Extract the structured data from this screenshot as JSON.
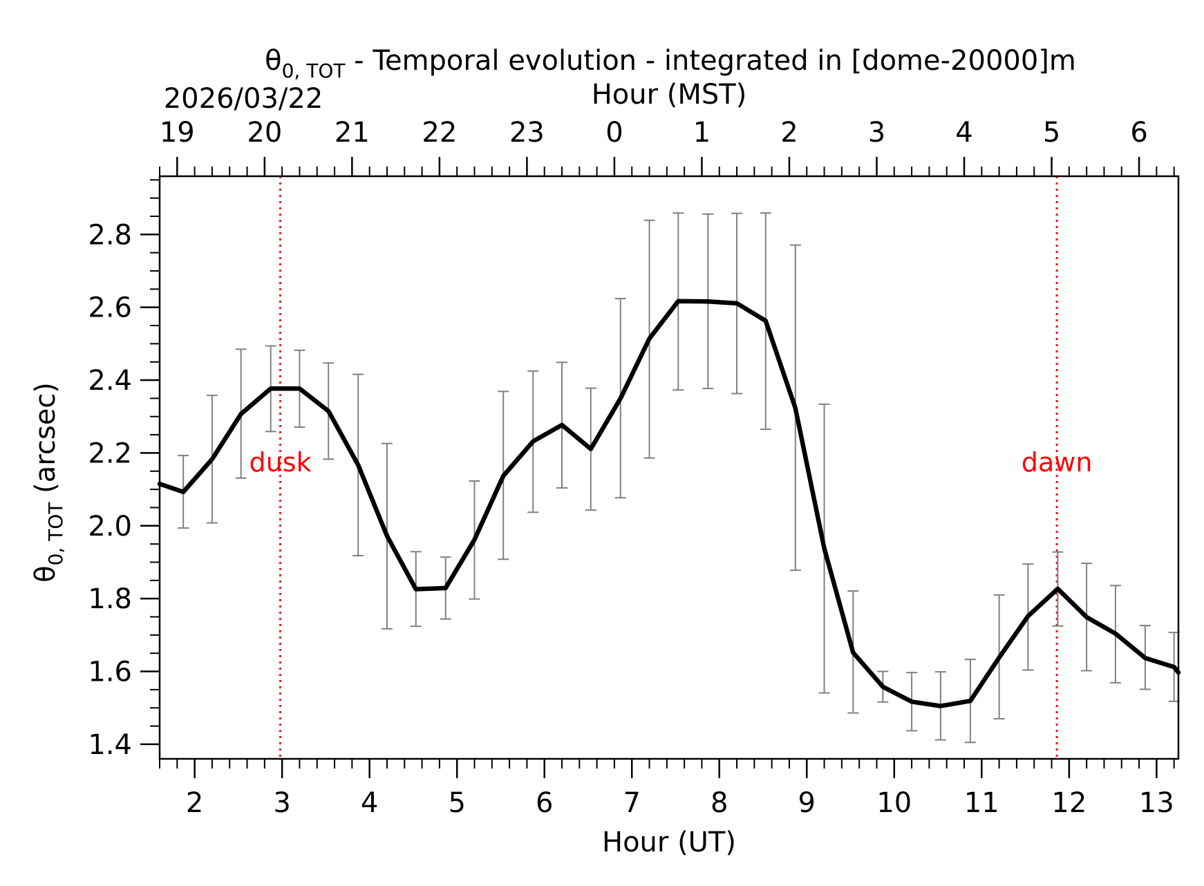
{
  "chart_data": {
    "type": "line",
    "title_sub": "0, TOT",
    "title_rest": " - Temporal evolution - integrated in [dome-20000]m",
    "ylabel_main": "θ",
    "ylabel_sub": "0, TOT",
    "ylabel_rest": " (arcsec)",
    "xlabel": "Hour (UT)",
    "x2label": "Hour (MST)",
    "date_label": "2026/03/22",
    "xlim": [
      1.6,
      13.25
    ],
    "ylim": [
      1.36,
      2.96
    ],
    "x_ticks": [
      2,
      3,
      4,
      5,
      6,
      7,
      8,
      9,
      10,
      11,
      12,
      13
    ],
    "x_tick_labels": [
      "2",
      "3",
      "4",
      "5",
      "6",
      "7",
      "8",
      "9",
      "10",
      "11",
      "12",
      "13"
    ],
    "x2_ticks": [
      1.8,
      2.8,
      3.8,
      4.8,
      5.8,
      6.8,
      7.8,
      8.8,
      9.8,
      10.8,
      11.8,
      12.8
    ],
    "x2_tick_labels": [
      "19",
      "20",
      "21",
      "22",
      "23",
      "0",
      "1",
      "2",
      "3",
      "4",
      "5",
      "6"
    ],
    "y_ticks": [
      1.4,
      1.6,
      1.8,
      2.0,
      2.2,
      2.4,
      2.6,
      2.8
    ],
    "y_tick_labels": [
      "1.4",
      "1.6",
      "1.8",
      "2.0",
      "2.2",
      "2.4",
      "2.6",
      "2.8"
    ],
    "series": [
      {
        "name": "theta0_TOT",
        "color": "#000000",
        "x": [
          1.6,
          1.87,
          2.2,
          2.53,
          2.87,
          3.2,
          3.53,
          3.87,
          4.2,
          4.53,
          4.87,
          5.2,
          5.53,
          5.87,
          6.2,
          6.53,
          6.87,
          7.2,
          7.53,
          7.87,
          8.2,
          8.53,
          8.87,
          9.2,
          9.53,
          9.87,
          10.2,
          10.53,
          10.87,
          11.2,
          11.53,
          11.87,
          12.2,
          12.53,
          12.87,
          13.2,
          13.25
        ],
        "y": [
          2.115,
          2.093,
          2.183,
          2.307,
          2.377,
          2.377,
          2.315,
          2.167,
          1.972,
          1.826,
          1.829,
          1.962,
          2.137,
          2.232,
          2.277,
          2.211,
          2.35,
          2.514,
          2.617,
          2.616,
          2.611,
          2.563,
          2.323,
          1.938,
          1.652,
          1.558,
          1.517,
          1.505,
          1.519,
          1.638,
          1.752,
          1.827,
          1.749,
          1.704,
          1.637,
          1.612,
          1.597
        ]
      }
    ],
    "error_bars": {
      "color": "#808080",
      "x": [
        1.87,
        2.2,
        2.53,
        2.87,
        3.2,
        3.53,
        3.87,
        4.2,
        4.53,
        4.87,
        5.2,
        5.53,
        5.87,
        6.2,
        6.53,
        6.87,
        7.2,
        7.53,
        7.87,
        8.2,
        8.53,
        8.87,
        9.2,
        9.53,
        9.87,
        10.2,
        10.53,
        10.87,
        11.2,
        11.53,
        11.87,
        12.2,
        12.53,
        12.87,
        13.2
      ],
      "low": [
        1.994,
        2.008,
        2.131,
        2.259,
        2.271,
        2.183,
        1.918,
        1.717,
        1.724,
        1.744,
        1.799,
        1.908,
        2.037,
        2.104,
        2.043,
        2.077,
        2.186,
        2.373,
        2.377,
        2.363,
        2.265,
        1.878,
        1.541,
        1.486,
        1.516,
        1.437,
        1.412,
        1.405,
        1.47,
        1.604,
        1.725,
        1.602,
        1.569,
        1.551,
        1.518
      ],
      "high": [
        2.193,
        2.358,
        2.485,
        2.494,
        2.482,
        2.447,
        2.416,
        2.226,
        1.929,
        1.914,
        2.123,
        2.369,
        2.425,
        2.449,
        2.378,
        2.624,
        2.839,
        2.859,
        2.856,
        2.858,
        2.859,
        2.771,
        2.334,
        1.821,
        1.6,
        1.597,
        1.599,
        1.633,
        1.81,
        1.895,
        1.928,
        1.897,
        1.836,
        1.726,
        1.707
      ]
    },
    "markers": [
      {
        "x": 2.98,
        "label": "dusk",
        "color": "#ff0000"
      },
      {
        "x": 11.86,
        "label": "dawn",
        "color": "#ff0000"
      }
    ],
    "marker_label_y": 2.15
  }
}
